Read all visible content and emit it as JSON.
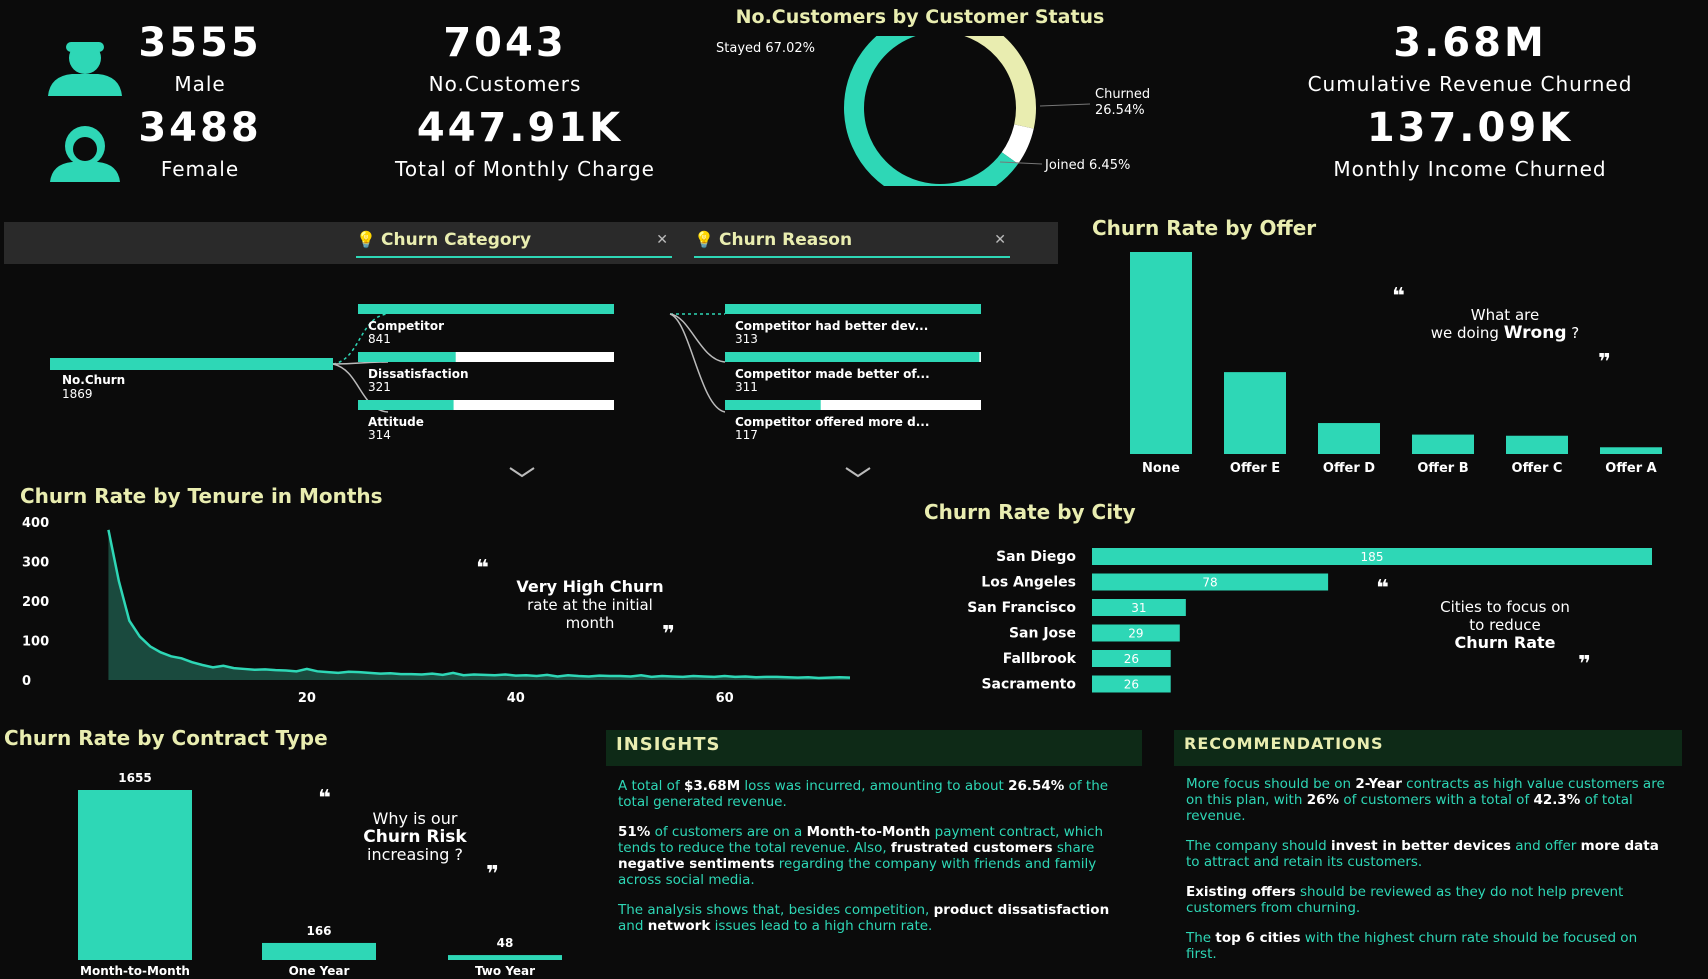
{
  "kpis": {
    "male": {
      "value": "3555",
      "label": "Male"
    },
    "female": {
      "value": "3488",
      "label": "Female"
    },
    "customers": {
      "value": "7043",
      "label": "No.Customers"
    },
    "monthly_charge": {
      "value": "447.91K",
      "label": "Total of Monthly Charge"
    },
    "revenue_churned": {
      "value": "3.68M",
      "label": "Cumulative Revenue Churned"
    },
    "income_churned": {
      "value": "137.09K",
      "label": "Monthly Income Churned"
    }
  },
  "donut": {
    "title": "No.Customers by Customer Status",
    "labels": {
      "stayed": "Stayed 67.02%",
      "churned_a": "Churned",
      "churned_b": "26.54%",
      "joined": "Joined 6.45%"
    }
  },
  "tree": {
    "filter1": "Churn Category",
    "filter2": "Churn Reason",
    "root": {
      "label": "No.Churn",
      "value": "1869"
    },
    "categories": [
      {
        "label": "Competitor",
        "value": "841"
      },
      {
        "label": "Dissatisfaction",
        "value": "321"
      },
      {
        "label": "Attitude",
        "value": "314"
      }
    ],
    "reasons": [
      {
        "label": "Competitor had better dev...",
        "value": "313"
      },
      {
        "label": "Competitor made better of...",
        "value": "311"
      },
      {
        "label": "Competitor offered more d...",
        "value": "117"
      }
    ]
  },
  "notes": {
    "offer": {
      "l1": "What are",
      "l2a": "we doing ",
      "l2b": "Wrong",
      "l2c": " ?"
    },
    "tenure": {
      "l1": "Very High Churn",
      "l2": "rate at the initial",
      "l3": "month"
    },
    "city": {
      "l1": "Cities to focus on",
      "l2": "to reduce",
      "l3": "Churn Rate"
    },
    "contract": {
      "l1": "Why is our",
      "l2": "Churn Risk",
      "l3": "increasing ?"
    }
  },
  "chart_data": [
    {
      "type": "pie",
      "title": "No.Customers by Customer Status",
      "categories": [
        "Stayed",
        "Churned",
        "Joined"
      ],
      "values": [
        67.02,
        26.54,
        6.45
      ],
      "colors": [
        "#2ed7b6",
        "#e9edb0",
        "#ffffff"
      ]
    },
    {
      "type": "bar",
      "title": "Churn Rate by Offer",
      "categories": [
        "None",
        "Offer E",
        "Offer D",
        "Offer B",
        "Offer C",
        "Offer A"
      ],
      "values": [
        1051,
        426,
        161,
        101,
        95,
        35
      ]
    },
    {
      "type": "area",
      "title": "Churn Rate by Tenure in Months",
      "yticks": [
        "400",
        "300",
        "200",
        "100",
        "0"
      ],
      "xticks": [
        "20",
        "40",
        "60"
      ],
      "ylim": [
        0,
        400
      ],
      "xlim": [
        0,
        72
      ],
      "x": [
        1,
        2,
        3,
        4,
        5,
        6,
        7,
        8,
        9,
        10,
        11,
        12,
        13,
        14,
        15,
        16,
        17,
        18,
        19,
        20,
        21,
        22,
        23,
        24,
        25,
        26,
        27,
        28,
        29,
        30,
        31,
        32,
        33,
        34,
        35,
        36,
        37,
        38,
        39,
        40,
        41,
        42,
        43,
        44,
        45,
        46,
        47,
        48,
        49,
        50,
        51,
        52,
        53,
        54,
        55,
        56,
        57,
        58,
        59,
        60,
        61,
        62,
        63,
        64,
        65,
        66,
        67,
        68,
        69,
        70,
        71,
        72
      ],
      "values": [
        380,
        250,
        150,
        110,
        85,
        70,
        60,
        55,
        45,
        38,
        32,
        36,
        30,
        28,
        26,
        27,
        25,
        24,
        22,
        28,
        22,
        20,
        18,
        21,
        20,
        18,
        16,
        17,
        15,
        15,
        14,
        16,
        13,
        18,
        12,
        14,
        13,
        12,
        14,
        11,
        12,
        10,
        13,
        9,
        12,
        10,
        9,
        11,
        10,
        10,
        9,
        12,
        8,
        10,
        9,
        8,
        10,
        9,
        8,
        10,
        8,
        9,
        7,
        8,
        8,
        7,
        6,
        7,
        5,
        6,
        7,
        6
      ]
    },
    {
      "type": "bar",
      "title": "Churn Rate by City",
      "categories": [
        "San Diego",
        "Los Angeles",
        "San Francisco",
        "San Jose",
        "Fallbrook",
        "Sacramento"
      ],
      "values": [
        185,
        78,
        31,
        29,
        26,
        26
      ]
    },
    {
      "type": "bar",
      "title": "Churn Rate by Contract Type",
      "categories": [
        "Month-to-Month",
        "One Year",
        "Two Year"
      ],
      "values": [
        1655,
        166,
        48
      ]
    }
  ],
  "insights": {
    "title": "INSIGHTS",
    "p1": {
      "a": "A total of ",
      "b": "$3.68M",
      "c": " loss was incurred, amounting to about ",
      "d": "26.54%",
      "e": " of the total generated revenue."
    },
    "p2": {
      "a": "51%",
      "b": " of customers are on a ",
      "c": "Month-to-Month",
      "d": " payment contract, which tends to reduce the total revenue. Also, ",
      "e": "frustrated customers",
      "f": " share ",
      "g": "negative sentiments",
      "h": " regarding the company with friends and family across social media."
    },
    "p3": {
      "a": "The analysis shows that, besides competition, ",
      "b": "product dissatisfaction",
      "c": " and ",
      "d": "network",
      "e": " issues lead to a high churn rate."
    }
  },
  "recommendations": {
    "title": "RECOMMENDATIONS",
    "p1": {
      "a": "More focus should be on ",
      "b": "2-Year",
      "c": " contracts as high value customers are on this plan, with ",
      "d": "26%",
      "e": " of customers with a total of ",
      "f": "42.3%",
      "g": " of total revenue."
    },
    "p2": {
      "a": "The company should ",
      "b": "invest in better devices",
      "c": " and offer ",
      "d": "more data",
      "e": " to attract and retain its customers."
    },
    "p3": {
      "a": "Existing offers",
      "b": " should be reviewed as they do not help prevent customers from churning."
    },
    "p4": {
      "a": "The ",
      "b": "top 6 cities",
      "c": " with the highest churn rate should be focused on first."
    }
  },
  "colors": {
    "teal": "#2ed7b6",
    "cream": "#e9edb0",
    "bg": "#0b0b0b",
    "panel": "#0e2a17"
  },
  "icons": {
    "male": "male-user-icon",
    "female": "female-user-icon",
    "filter": "lightbulb-icon",
    "clear": "close-icon",
    "expand": "chevron-down-icon"
  }
}
